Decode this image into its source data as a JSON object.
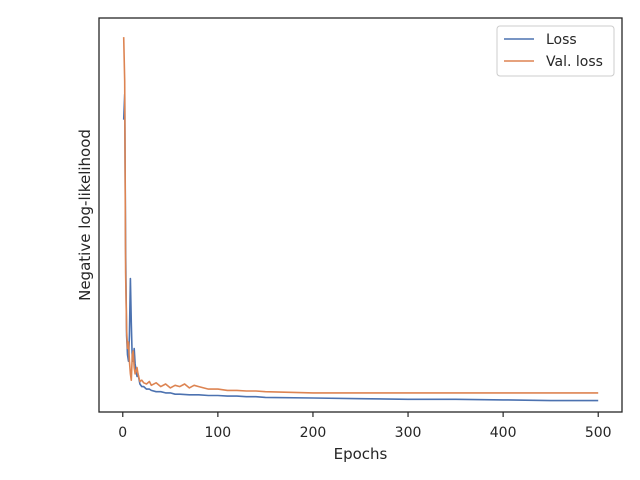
{
  "chart_data": {
    "type": "line",
    "title": "",
    "xlabel": "Epochs",
    "ylabel": "Negative log-likelihood",
    "xlim": [
      -25,
      525
    ],
    "ylim": [
      -0.1,
      3.0
    ],
    "xticks": [
      0,
      100,
      200,
      300,
      400,
      500
    ],
    "yticks_visible": false,
    "grid": false,
    "legend": {
      "position": "top-right",
      "entries": [
        "Loss",
        "Val. loss"
      ]
    },
    "series": [
      {
        "name": "Loss",
        "color": "#4c72b0",
        "x": [
          1,
          2,
          3,
          4,
          5,
          6,
          7,
          8,
          9,
          10,
          11,
          12,
          13,
          14,
          15,
          16,
          18,
          20,
          22,
          25,
          28,
          30,
          35,
          40,
          45,
          50,
          55,
          60,
          70,
          80,
          90,
          100,
          110,
          120,
          130,
          140,
          150,
          200,
          250,
          300,
          350,
          400,
          450,
          500
        ],
        "values": [
          2.2,
          2.4,
          1.2,
          0.5,
          0.35,
          0.3,
          0.5,
          0.95,
          0.6,
          0.3,
          0.3,
          0.4,
          0.28,
          0.22,
          0.18,
          0.2,
          0.12,
          0.1,
          0.1,
          0.08,
          0.08,
          0.07,
          0.06,
          0.06,
          0.05,
          0.05,
          0.04,
          0.04,
          0.035,
          0.035,
          0.03,
          0.03,
          0.025,
          0.025,
          0.02,
          0.02,
          0.015,
          0.01,
          0.005,
          0.0,
          0.0,
          -0.005,
          -0.01,
          -0.01
        ]
      },
      {
        "name": "Val. loss",
        "color": "#dd8452",
        "x": [
          1,
          2,
          3,
          4,
          5,
          6,
          7,
          8,
          9,
          10,
          11,
          12,
          13,
          14,
          15,
          16,
          18,
          20,
          22,
          25,
          28,
          30,
          35,
          40,
          45,
          50,
          55,
          60,
          65,
          70,
          75,
          80,
          85,
          90,
          100,
          110,
          120,
          130,
          140,
          150,
          200,
          250,
          300,
          350,
          400,
          450,
          500
        ],
        "values": [
          2.85,
          2.5,
          1.0,
          0.55,
          0.4,
          0.45,
          0.3,
          0.2,
          0.15,
          0.35,
          0.38,
          0.25,
          0.2,
          0.22,
          0.25,
          0.2,
          0.14,
          0.15,
          0.13,
          0.12,
          0.14,
          0.11,
          0.13,
          0.1,
          0.12,
          0.09,
          0.11,
          0.1,
          0.12,
          0.09,
          0.11,
          0.1,
          0.09,
          0.08,
          0.08,
          0.07,
          0.07,
          0.065,
          0.065,
          0.06,
          0.05,
          0.05,
          0.05,
          0.05,
          0.05,
          0.05,
          0.05
        ]
      }
    ]
  }
}
